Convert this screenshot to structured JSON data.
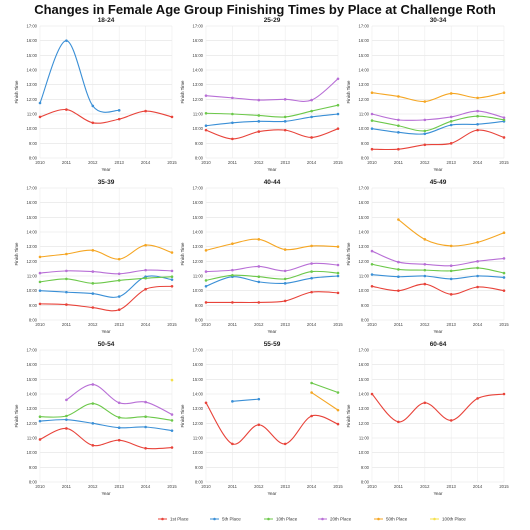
{
  "title": "Changes in Female Age Group Finishing Times by Place at Challenge Roth",
  "chart_data": {
    "type": "line",
    "series_names": [
      "1st Place",
      "5th Place",
      "10th Place",
      "20th Place",
      "50th Place",
      "100th Place"
    ],
    "series_colors": [
      "#e8433a",
      "#3a8fd6",
      "#6cc84a",
      "#b86fd6",
      "#f5a623",
      "#f5e04a"
    ],
    "xlabel": "Year",
    "ylabel": "Finish Time",
    "x_ticks": [
      "2010",
      "2011",
      "2012",
      "2013",
      "2014",
      "2015"
    ],
    "y_ticks": [
      "8:00",
      "9:00",
      "10:00",
      "11:00",
      "12:00",
      "13:00",
      "14:00",
      "15:00",
      "16:00",
      "17:00"
    ],
    "ylim": [
      8,
      17
    ],
    "xlim": [
      2010,
      2015
    ],
    "grid": true,
    "legend_position": "bottom",
    "panels": [
      {
        "title": "18-24",
        "series": [
          {
            "x": [
              2010,
              2011,
              2012,
              2013,
              2014,
              2015
            ],
            "y": [
              10.8,
              11.3,
              10.4,
              10.65,
              11.2,
              10.8
            ]
          },
          {
            "x": [
              2010,
              2011,
              2012,
              2013
            ],
            "y": [
              11.75,
              16.0,
              11.55,
              11.25
            ]
          },
          {
            "x": [],
            "y": []
          },
          {
            "x": [],
            "y": []
          },
          {
            "x": [],
            "y": []
          },
          {
            "x": [],
            "y": []
          }
        ]
      },
      {
        "title": "25-29",
        "series": [
          {
            "x": [
              2010,
              2011,
              2012,
              2013,
              2014,
              2015
            ],
            "y": [
              9.9,
              9.3,
              9.8,
              9.9,
              9.4,
              10.0
            ]
          },
          {
            "x": [
              2010,
              2011,
              2012,
              2013,
              2014,
              2015
            ],
            "y": [
              10.2,
              10.4,
              10.5,
              10.5,
              10.8,
              11.0
            ]
          },
          {
            "x": [
              2010,
              2011,
              2012,
              2013,
              2014,
              2015
            ],
            "y": [
              11.05,
              11.0,
              10.9,
              10.8,
              11.2,
              11.6
            ]
          },
          {
            "x": [
              2010,
              2011,
              2012,
              2013,
              2014,
              2015
            ],
            "y": [
              12.25,
              12.1,
              11.95,
              12.0,
              11.95,
              13.4
            ]
          },
          {
            "x": [],
            "y": []
          },
          {
            "x": [],
            "y": []
          }
        ]
      },
      {
        "title": "30-34",
        "series": [
          {
            "x": [
              2010,
              2011,
              2012,
              2013,
              2014,
              2015
            ],
            "y": [
              8.6,
              8.6,
              8.9,
              9.0,
              9.9,
              9.4
            ]
          },
          {
            "x": [
              2010,
              2011,
              2012,
              2013,
              2014,
              2015
            ],
            "y": [
              10.0,
              9.75,
              9.65,
              10.25,
              10.3,
              10.5
            ]
          },
          {
            "x": [
              2010,
              2011,
              2012,
              2013,
              2014,
              2015
            ],
            "y": [
              10.55,
              10.2,
              9.85,
              10.5,
              10.85,
              10.6
            ]
          },
          {
            "x": [
              2010,
              2011,
              2012,
              2013,
              2014,
              2015
            ],
            "y": [
              11.0,
              10.6,
              10.6,
              10.8,
              11.2,
              10.75
            ]
          },
          {
            "x": [
              2010,
              2011,
              2012,
              2013,
              2014,
              2015
            ],
            "y": [
              12.45,
              12.2,
              11.85,
              12.4,
              12.1,
              12.45
            ]
          },
          {
            "x": [],
            "y": []
          }
        ]
      },
      {
        "title": "35-39",
        "series": [
          {
            "x": [
              2010,
              2011,
              2012,
              2013,
              2014,
              2015
            ],
            "y": [
              9.1,
              9.05,
              8.85,
              8.7,
              10.1,
              10.3
            ]
          },
          {
            "x": [
              2010,
              2011,
              2012,
              2013,
              2014,
              2015
            ],
            "y": [
              10.0,
              9.9,
              9.8,
              9.6,
              10.95,
              10.75
            ]
          },
          {
            "x": [
              2010,
              2011,
              2012,
              2013,
              2014,
              2015
            ],
            "y": [
              10.6,
              10.8,
              10.5,
              10.7,
              10.85,
              10.95
            ]
          },
          {
            "x": [
              2010,
              2011,
              2012,
              2013,
              2014,
              2015
            ],
            "y": [
              11.2,
              11.35,
              11.3,
              11.15,
              11.4,
              11.35
            ]
          },
          {
            "x": [
              2010,
              2011,
              2012,
              2013,
              2014,
              2015
            ],
            "y": [
              12.3,
              12.5,
              12.75,
              12.15,
              13.1,
              12.6
            ]
          },
          {
            "x": [],
            "y": []
          }
        ]
      },
      {
        "title": "40-44",
        "series": [
          {
            "x": [
              2010,
              2011,
              2012,
              2013,
              2014,
              2015
            ],
            "y": [
              9.2,
              9.2,
              9.2,
              9.3,
              9.9,
              9.85
            ]
          },
          {
            "x": [
              2010,
              2011,
              2012,
              2013,
              2014,
              2015
            ],
            "y": [
              10.3,
              10.95,
              10.6,
              10.5,
              10.85,
              11.0
            ]
          },
          {
            "x": [
              2010,
              2011,
              2012,
              2013,
              2014,
              2015
            ],
            "y": [
              10.7,
              11.05,
              10.95,
              10.8,
              11.3,
              11.2
            ]
          },
          {
            "x": [
              2010,
              2011,
              2012,
              2013,
              2014,
              2015
            ],
            "y": [
              11.3,
              11.4,
              11.65,
              11.35,
              11.85,
              11.75
            ]
          },
          {
            "x": [
              2010,
              2011,
              2012,
              2013,
              2014,
              2015
            ],
            "y": [
              12.75,
              13.2,
              13.5,
              12.8,
              13.05,
              13.0
            ]
          },
          {
            "x": [],
            "y": []
          }
        ]
      },
      {
        "title": "45-49",
        "series": [
          {
            "x": [
              2010,
              2011,
              2012,
              2013,
              2014,
              2015
            ],
            "y": [
              10.3,
              10.0,
              10.45,
              9.75,
              10.25,
              10.0
            ]
          },
          {
            "x": [
              2010,
              2011,
              2012,
              2013,
              2014,
              2015
            ],
            "y": [
              11.1,
              10.95,
              11.0,
              10.8,
              11.0,
              10.9
            ]
          },
          {
            "x": [
              2010,
              2011,
              2012,
              2013,
              2014,
              2015
            ],
            "y": [
              11.8,
              11.45,
              11.4,
              11.35,
              11.55,
              11.2
            ]
          },
          {
            "x": [
              2010,
              2011,
              2012,
              2013,
              2014,
              2015
            ],
            "y": [
              12.7,
              11.95,
              11.8,
              11.7,
              12.0,
              12.2
            ]
          },
          {
            "x": [
              2011,
              2012,
              2013,
              2014,
              2015
            ],
            "y": [
              14.85,
              13.5,
              13.05,
              13.3,
              13.95
            ]
          },
          {
            "x": [],
            "y": []
          }
        ]
      },
      {
        "title": "50-54",
        "series": [
          {
            "x": [
              2010,
              2011,
              2012,
              2013,
              2014,
              2015
            ],
            "y": [
              10.9,
              11.65,
              10.5,
              10.85,
              10.3,
              10.35
            ]
          },
          {
            "x": [
              2010,
              2011,
              2012,
              2013,
              2014,
              2015
            ],
            "y": [
              12.15,
              12.25,
              12.0,
              11.7,
              11.75,
              11.5
            ]
          },
          {
            "x": [
              2010,
              2011,
              2012,
              2013,
              2014,
              2015
            ],
            "y": [
              12.45,
              12.5,
              13.35,
              12.4,
              12.45,
              12.2
            ]
          },
          {
            "x": [
              2011,
              2012,
              2013,
              2014,
              2015
            ],
            "y": [
              13.6,
              14.65,
              13.4,
              13.45,
              12.6
            ]
          },
          {
            "x": [],
            "y": []
          },
          {
            "x": [
              2015
            ],
            "y": [
              14.95
            ]
          }
        ]
      },
      {
        "title": "55-59",
        "series": [
          {
            "x": [
              2010,
              2011,
              2012,
              2013,
              2014,
              2015
            ],
            "y": [
              13.4,
              10.6,
              11.9,
              10.6,
              12.5,
              11.95
            ]
          },
          {
            "x": [
              2011,
              2012
            ],
            "y": [
              13.5,
              13.65
            ]
          },
          {
            "x": [
              2014,
              2015
            ],
            "y": [
              14.75,
              14.1
            ]
          },
          {
            "x": [],
            "y": []
          },
          {
            "x": [
              2014,
              2015
            ],
            "y": [
              14.1,
              12.9
            ]
          },
          {
            "x": [],
            "y": []
          }
        ]
      },
      {
        "title": "60-64",
        "series": [
          {
            "x": [
              2010,
              2011,
              2012,
              2013,
              2014,
              2015
            ],
            "y": [
              14.0,
              12.1,
              13.4,
              12.2,
              13.7,
              14.0
            ]
          },
          {
            "x": [],
            "y": []
          },
          {
            "x": [],
            "y": []
          },
          {
            "x": [],
            "y": []
          },
          {
            "x": [],
            "y": []
          },
          {
            "x": [],
            "y": []
          }
        ]
      }
    ]
  }
}
